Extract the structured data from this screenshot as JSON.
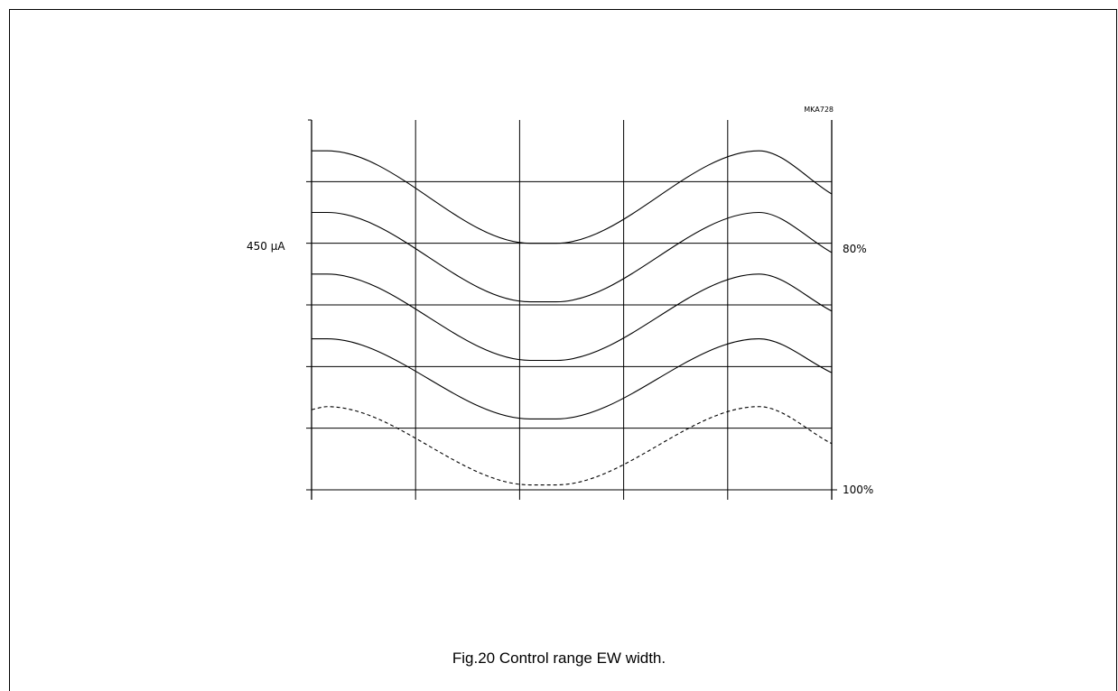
{
  "figure": {
    "code": "MKA728",
    "caption": "Fig.20  Control range EW width."
  },
  "chart_data": {
    "type": "line",
    "title": "",
    "xlabel": "",
    "ylabel": "",
    "xlim": [
      0,
      5
    ],
    "ylim": [
      0,
      6
    ],
    "grid": true,
    "y_markers": [
      {
        "y": 4,
        "left": "450 µA",
        "right": "80%"
      },
      {
        "y": 0,
        "left": "",
        "right": "100%"
      }
    ],
    "series": [
      {
        "style": "solid",
        "x": [
          0,
          0.15,
          2.1,
          2.35,
          4.3,
          5
        ],
        "y": [
          5.5,
          5.5,
          4.0,
          4.0,
          5.5,
          4.8
        ]
      },
      {
        "style": "solid",
        "x": [
          0,
          0.15,
          2.1,
          2.35,
          4.3,
          5
        ],
        "y": [
          4.5,
          4.5,
          3.05,
          3.05,
          4.5,
          3.85
        ]
      },
      {
        "style": "solid",
        "x": [
          0,
          0.15,
          2.1,
          2.35,
          4.3,
          5
        ],
        "y": [
          3.5,
          3.5,
          2.1,
          2.1,
          3.5,
          2.9
        ]
      },
      {
        "style": "solid",
        "x": [
          0,
          0.15,
          2.1,
          2.35,
          4.3,
          5
        ],
        "y": [
          2.45,
          2.45,
          1.15,
          1.15,
          2.45,
          1.9
        ]
      },
      {
        "style": "dashed",
        "x": [
          0,
          0.15,
          2.1,
          2.35,
          4.3,
          5
        ],
        "y": [
          1.3,
          1.35,
          0.08,
          0.08,
          1.35,
          0.75
        ]
      }
    ]
  }
}
